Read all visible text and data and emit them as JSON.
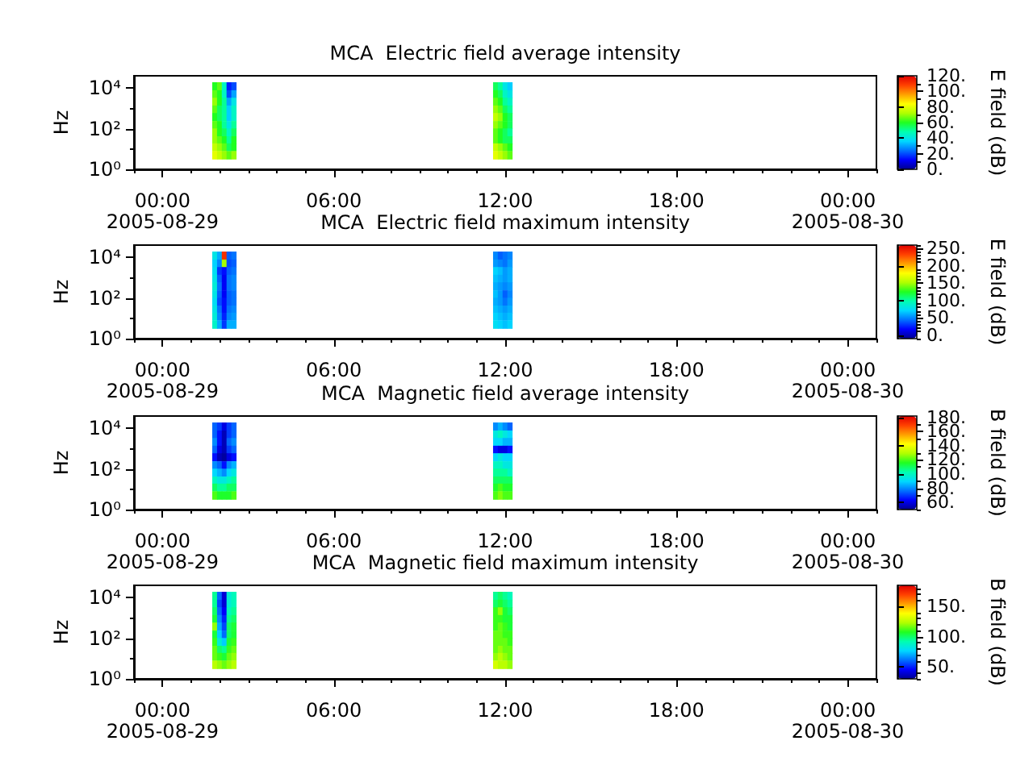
{
  "chart_data": [
    {
      "type": "scatter",
      "title": "MCA  Electric field average intensity",
      "ylabel": "Hz",
      "clabel": "E field (dB)",
      "marker": "square",
      "log": "y",
      "xlim": [
        "2005-08-28T23:00",
        "2005-08-30T01:00"
      ],
      "xticks": [
        {
          "value": "2005-08-28T23:00",
          "label": null
        },
        {
          "value": "2005-08-29T00:00",
          "label": "00:00\n2005-08-29"
        },
        {
          "value": "2005-08-29T01:00",
          "label": null
        },
        {
          "value": "2005-08-29T02:00",
          "label": null
        },
        {
          "value": "2005-08-29T03:00",
          "label": null
        },
        {
          "value": "2005-08-29T04:00",
          "label": null
        },
        {
          "value": "2005-08-29T05:00",
          "label": null
        },
        {
          "value": "2005-08-29T06:00",
          "label": "06:00"
        },
        {
          "value": "2005-08-29T07:00",
          "label": null
        },
        {
          "value": "2005-08-29T08:00",
          "label": null
        },
        {
          "value": "2005-08-29T09:00",
          "label": null
        },
        {
          "value": "2005-08-29T10:00",
          "label": null
        },
        {
          "value": "2005-08-29T11:00",
          "label": null
        },
        {
          "value": "2005-08-29T12:00",
          "label": "12:00"
        },
        {
          "value": "2005-08-29T13:00",
          "label": null
        },
        {
          "value": "2005-08-29T14:00",
          "label": null
        },
        {
          "value": "2005-08-29T15:00",
          "label": null
        },
        {
          "value": "2005-08-29T16:00",
          "label": null
        },
        {
          "value": "2005-08-29T17:00",
          "label": null
        },
        {
          "value": "2005-08-29T18:00",
          "label": "18:00"
        },
        {
          "value": "2005-08-29T19:00",
          "label": null
        },
        {
          "value": "2005-08-29T20:00",
          "label": null
        },
        {
          "value": "2005-08-29T21:00",
          "label": null
        },
        {
          "value": "2005-08-29T22:00",
          "label": null
        },
        {
          "value": "2005-08-29T23:00",
          "label": null
        },
        {
          "value": "2005-08-30T00:00",
          "label": "00:00\n2005-08-30"
        },
        {
          "value": "2005-08-30T01:00",
          "label": null
        }
      ],
      "ylim": [
        1,
        40000
      ],
      "yticks": [
        {
          "value": 1,
          "label": "10⁰"
        },
        {
          "value": 10,
          "label": null
        },
        {
          "value": 100,
          "label": "10²"
        },
        {
          "value": 1000,
          "label": null
        },
        {
          "value": 10000,
          "label": "10⁴"
        }
      ],
      "clim": [
        0,
        120
      ],
      "cticks": [
        {
          "value": 0,
          "label": "0."
        },
        {
          "value": 10,
          "label": null
        },
        {
          "value": 20,
          "label": "20."
        },
        {
          "value": 30,
          "label": null
        },
        {
          "value": 40,
          "label": "40."
        },
        {
          "value": 50,
          "label": null
        },
        {
          "value": 60,
          "label": "60."
        },
        {
          "value": 70,
          "label": null
        },
        {
          "value": 80,
          "label": "80."
        },
        {
          "value": 90,
          "label": null
        },
        {
          "value": 100,
          "label": "100."
        },
        {
          "value": 110,
          "label": null
        },
        {
          "value": 120,
          "label": "120."
        }
      ],
      "x": [
        "2005-08-29T01:50",
        "2005-08-29T02:00",
        "2005-08-29T02:10",
        "2005-08-29T02:20",
        "2005-08-29T02:30",
        "2005-08-29T01:50",
        "2005-08-29T02:00",
        "2005-08-29T02:10",
        "2005-08-29T02:20",
        "2005-08-29T02:30",
        "2005-08-29T01:50",
        "2005-08-29T02:00",
        "2005-08-29T02:10",
        "2005-08-29T02:20",
        "2005-08-29T02:30",
        "2005-08-29T01:50",
        "2005-08-29T02:00",
        "2005-08-29T02:10",
        "2005-08-29T02:20",
        "2005-08-29T02:30",
        "2005-08-29T01:50",
        "2005-08-29T02:00",
        "2005-08-29T02:10",
        "2005-08-29T02:20",
        "2005-08-29T02:30",
        "2005-08-29T01:50",
        "2005-08-29T02:00",
        "2005-08-29T02:10",
        "2005-08-29T02:20",
        "2005-08-29T02:30",
        "2005-08-29T01:50",
        "2005-08-29T02:00",
        "2005-08-29T02:10",
        "2005-08-29T02:20",
        "2005-08-29T02:30",
        "2005-08-29T01:50",
        "2005-08-29T02:00",
        "2005-08-29T02:10",
        "2005-08-29T02:20",
        "2005-08-29T02:30",
        "2005-08-29T01:50",
        "2005-08-29T02:00",
        "2005-08-29T02:10",
        "2005-08-29T02:20",
        "2005-08-29T02:30",
        "2005-08-29T01:50",
        "2005-08-29T02:00",
        "2005-08-29T02:10",
        "2005-08-29T02:20",
        "2005-08-29T02:30",
        "2005-08-29T11:40",
        "2005-08-29T11:50",
        "2005-08-29T12:00",
        "2005-08-29T12:10",
        "2005-08-29T11:40",
        "2005-08-29T11:50",
        "2005-08-29T12:00",
        "2005-08-29T12:10",
        "2005-08-29T11:40",
        "2005-08-29T11:50",
        "2005-08-29T12:00",
        "2005-08-29T12:10",
        "2005-08-29T11:40",
        "2005-08-29T11:50",
        "2005-08-29T12:00",
        "2005-08-29T12:10",
        "2005-08-29T11:40",
        "2005-08-29T11:50",
        "2005-08-29T12:00",
        "2005-08-29T12:10",
        "2005-08-29T11:40",
        "2005-08-29T11:50",
        "2005-08-29T12:00",
        "2005-08-29T12:10",
        "2005-08-29T11:40",
        "2005-08-29T11:50",
        "2005-08-29T12:00",
        "2005-08-29T12:10",
        "2005-08-29T11:40",
        "2005-08-29T11:50",
        "2005-08-29T12:00",
        "2005-08-29T12:10",
        "2005-08-29T11:40",
        "2005-08-29T11:50",
        "2005-08-29T12:00",
        "2005-08-29T12:10",
        "2005-08-29T11:40",
        "2005-08-29T11:50",
        "2005-08-29T12:00",
        "2005-08-29T12:10"
      ],
      "values": [
        12000,
        12000,
        12000,
        12000,
        12000,
        4900,
        4900,
        4900,
        4900,
        4900,
        2100,
        2100,
        2100,
        2100,
        2100,
        870,
        870,
        870,
        870,
        870,
        370,
        370,
        370,
        370,
        370,
        150,
        150,
        150,
        150,
        150,
        65,
        65,
        65,
        65,
        65,
        27,
        27,
        27,
        27,
        27,
        12,
        12,
        12,
        12,
        12,
        4.9,
        4.9,
        4.9,
        4.9,
        4.9,
        12000,
        12000,
        12000,
        12000,
        4900,
        4900,
        4900,
        4900,
        2100,
        2100,
        2100,
        2100,
        870,
        870,
        870,
        870,
        370,
        370,
        370,
        370,
        150,
        150,
        150,
        150,
        65,
        65,
        65,
        65,
        27,
        27,
        27,
        27,
        12,
        12,
        12,
        12,
        4.9,
        4.9,
        4.9,
        4.9
      ],
      "cvalues": [
        60,
        65,
        45,
        15,
        20,
        65,
        60,
        45,
        20,
        30,
        70,
        60,
        50,
        30,
        40,
        65,
        55,
        50,
        35,
        45,
        60,
        55,
        50,
        35,
        45,
        65,
        60,
        50,
        40,
        50,
        70,
        60,
        55,
        45,
        55,
        70,
        65,
        60,
        50,
        60,
        75,
        70,
        65,
        55,
        60,
        80,
        75,
        70,
        65,
        70,
        55,
        50,
        40,
        35,
        60,
        55,
        45,
        40,
        65,
        60,
        50,
        45,
        70,
        65,
        55,
        50,
        75,
        70,
        60,
        55,
        70,
        65,
        60,
        55,
        65,
        60,
        55,
        50,
        65,
        60,
        55,
        55,
        75,
        70,
        65,
        60,
        80,
        75,
        70,
        65
      ]
    },
    {
      "type": "scatter",
      "title": "MCA  Electric field maximum intensity",
      "ylabel": "Hz",
      "clabel": "E field (dB)",
      "marker": "square",
      "log": "y",
      "xlim": [
        "2005-08-28T23:00",
        "2005-08-30T01:00"
      ],
      "xticks": [
        {
          "value": "2005-08-28T23:00",
          "label": null
        },
        {
          "value": "2005-08-29T00:00",
          "label": "00:00\n2005-08-29"
        },
        {
          "value": "2005-08-29T01:00",
          "label": null
        },
        {
          "value": "2005-08-29T02:00",
          "label": null
        },
        {
          "value": "2005-08-29T03:00",
          "label": null
        },
        {
          "value": "2005-08-29T04:00",
          "label": null
        },
        {
          "value": "2005-08-29T05:00",
          "label": null
        },
        {
          "value": "2005-08-29T06:00",
          "label": "06:00"
        },
        {
          "value": "2005-08-29T07:00",
          "label": null
        },
        {
          "value": "2005-08-29T08:00",
          "label": null
        },
        {
          "value": "2005-08-29T09:00",
          "label": null
        },
        {
          "value": "2005-08-29T10:00",
          "label": null
        },
        {
          "value": "2005-08-29T11:00",
          "label": null
        },
        {
          "value": "2005-08-29T12:00",
          "label": "12:00"
        },
        {
          "value": "2005-08-29T13:00",
          "label": null
        },
        {
          "value": "2005-08-29T14:00",
          "label": null
        },
        {
          "value": "2005-08-29T15:00",
          "label": null
        },
        {
          "value": "2005-08-29T16:00",
          "label": null
        },
        {
          "value": "2005-08-29T17:00",
          "label": null
        },
        {
          "value": "2005-08-29T18:00",
          "label": "18:00"
        },
        {
          "value": "2005-08-29T19:00",
          "label": null
        },
        {
          "value": "2005-08-29T20:00",
          "label": null
        },
        {
          "value": "2005-08-29T21:00",
          "label": null
        },
        {
          "value": "2005-08-29T22:00",
          "label": null
        },
        {
          "value": "2005-08-29T23:00",
          "label": null
        },
        {
          "value": "2005-08-30T00:00",
          "label": "00:00\n2005-08-30"
        },
        {
          "value": "2005-08-30T01:00",
          "label": null
        }
      ],
      "ylim": [
        1,
        40000
      ],
      "yticks": [
        {
          "value": 1,
          "label": "10⁰"
        },
        {
          "value": 10,
          "label": null
        },
        {
          "value": 100,
          "label": "10²"
        },
        {
          "value": 1000,
          "label": null
        },
        {
          "value": 10000,
          "label": "10⁴"
        }
      ],
      "clim": [
        -10,
        260
      ],
      "cticks": [
        {
          "value": -10,
          "label": null
        },
        {
          "value": 0,
          "label": "0."
        },
        {
          "value": 10,
          "label": null
        },
        {
          "value": 20,
          "label": null
        },
        {
          "value": 30,
          "label": null
        },
        {
          "value": 40,
          "label": null
        },
        {
          "value": 50,
          "label": "50."
        },
        {
          "value": 60,
          "label": null
        },
        {
          "value": 70,
          "label": null
        },
        {
          "value": 80,
          "label": null
        },
        {
          "value": 90,
          "label": null
        },
        {
          "value": 100,
          "label": "100."
        },
        {
          "value": 110,
          "label": null
        },
        {
          "value": 120,
          "label": null
        },
        {
          "value": 130,
          "label": null
        },
        {
          "value": 140,
          "label": null
        },
        {
          "value": 150,
          "label": "150."
        },
        {
          "value": 160,
          "label": null
        },
        {
          "value": 170,
          "label": null
        },
        {
          "value": 180,
          "label": null
        },
        {
          "value": 190,
          "label": null
        },
        {
          "value": 200,
          "label": "200."
        },
        {
          "value": 210,
          "label": null
        },
        {
          "value": 220,
          "label": null
        },
        {
          "value": 230,
          "label": null
        },
        {
          "value": 240,
          "label": null
        },
        {
          "value": 250,
          "label": "250."
        },
        {
          "value": 260,
          "label": null
        }
      ],
      "x": [
        "2005-08-29T01:50",
        "2005-08-29T02:00",
        "2005-08-29T02:10",
        "2005-08-29T02:20",
        "2005-08-29T02:30",
        "2005-08-29T01:50",
        "2005-08-29T02:00",
        "2005-08-29T02:10",
        "2005-08-29T02:20",
        "2005-08-29T02:30",
        "2005-08-29T01:50",
        "2005-08-29T02:00",
        "2005-08-29T02:10",
        "2005-08-29T02:20",
        "2005-08-29T02:30",
        "2005-08-29T01:50",
        "2005-08-29T02:00",
        "2005-08-29T02:10",
        "2005-08-29T02:20",
        "2005-08-29T02:30",
        "2005-08-29T01:50",
        "2005-08-29T02:00",
        "2005-08-29T02:10",
        "2005-08-29T02:20",
        "2005-08-29T02:30",
        "2005-08-29T01:50",
        "2005-08-29T02:00",
        "2005-08-29T02:10",
        "2005-08-29T02:20",
        "2005-08-29T02:30",
        "2005-08-29T01:50",
        "2005-08-29T02:00",
        "2005-08-29T02:10",
        "2005-08-29T02:20",
        "2005-08-29T02:30",
        "2005-08-29T01:50",
        "2005-08-29T02:00",
        "2005-08-29T02:10",
        "2005-08-29T02:20",
        "2005-08-29T02:30",
        "2005-08-29T01:50",
        "2005-08-29T02:00",
        "2005-08-29T02:10",
        "2005-08-29T02:20",
        "2005-08-29T02:30",
        "2005-08-29T01:50",
        "2005-08-29T02:00",
        "2005-08-29T02:10",
        "2005-08-29T02:20",
        "2005-08-29T02:30",
        "2005-08-29T11:40",
        "2005-08-29T11:50",
        "2005-08-29T12:00",
        "2005-08-29T12:10",
        "2005-08-29T11:40",
        "2005-08-29T11:50",
        "2005-08-29T12:00",
        "2005-08-29T12:10",
        "2005-08-29T11:40",
        "2005-08-29T11:50",
        "2005-08-29T12:00",
        "2005-08-29T12:10",
        "2005-08-29T11:40",
        "2005-08-29T11:50",
        "2005-08-29T12:00",
        "2005-08-29T12:10",
        "2005-08-29T11:40",
        "2005-08-29T11:50",
        "2005-08-29T12:00",
        "2005-08-29T12:10",
        "2005-08-29T11:40",
        "2005-08-29T11:50",
        "2005-08-29T12:00",
        "2005-08-29T12:10",
        "2005-08-29T11:40",
        "2005-08-29T11:50",
        "2005-08-29T12:00",
        "2005-08-29T12:10",
        "2005-08-29T11:40",
        "2005-08-29T11:50",
        "2005-08-29T12:00",
        "2005-08-29T12:10",
        "2005-08-29T11:40",
        "2005-08-29T11:50",
        "2005-08-29T12:00",
        "2005-08-29T12:10",
        "2005-08-29T11:40",
        "2005-08-29T11:50",
        "2005-08-29T12:00",
        "2005-08-29T12:10"
      ],
      "values": [
        12000,
        12000,
        12000,
        12000,
        12000,
        4900,
        4900,
        4900,
        4900,
        4900,
        2100,
        2100,
        2100,
        2100,
        2100,
        870,
        870,
        870,
        870,
        870,
        370,
        370,
        370,
        370,
        370,
        150,
        150,
        150,
        150,
        150,
        65,
        65,
        65,
        65,
        65,
        27,
        27,
        27,
        27,
        27,
        12,
        12,
        12,
        12,
        12,
        4.9,
        4.9,
        4.9,
        4.9,
        4.9,
        12000,
        12000,
        12000,
        12000,
        4900,
        4900,
        4900,
        4900,
        2100,
        2100,
        2100,
        2100,
        870,
        870,
        870,
        870,
        370,
        370,
        370,
        370,
        150,
        150,
        150,
        150,
        65,
        65,
        65,
        65,
        27,
        27,
        27,
        27,
        12,
        12,
        12,
        12,
        4.9,
        4.9,
        4.9,
        4.9
      ],
      "cvalues": [
        80,
        60,
        240,
        40,
        45,
        70,
        50,
        150,
        35,
        40,
        75,
        30,
        20,
        40,
        45,
        80,
        40,
        15,
        45,
        50,
        85,
        45,
        15,
        45,
        50,
        80,
        40,
        15,
        40,
        45,
        75,
        35,
        20,
        40,
        45,
        80,
        45,
        20,
        45,
        50,
        85,
        50,
        25,
        50,
        55,
        90,
        60,
        30,
        60,
        60,
        50,
        40,
        45,
        50,
        55,
        50,
        45,
        55,
        70,
        65,
        55,
        60,
        65,
        60,
        55,
        60,
        60,
        55,
        50,
        55,
        65,
        55,
        40,
        50,
        60,
        55,
        45,
        55,
        65,
        60,
        55,
        60,
        70,
        65,
        60,
        65,
        75,
        70,
        65,
        70
      ]
    },
    {
      "type": "scatter",
      "title": "MCA  Magnetic field average intensity",
      "ylabel": "Hz",
      "clabel": "B field (dB)",
      "marker": "square",
      "log": "y",
      "xlim": [
        "2005-08-28T23:00",
        "2005-08-30T01:00"
      ],
      "xticks": [
        {
          "value": "2005-08-28T23:00",
          "label": null
        },
        {
          "value": "2005-08-29T00:00",
          "label": "00:00\n2005-08-29"
        },
        {
          "value": "2005-08-29T01:00",
          "label": null
        },
        {
          "value": "2005-08-29T02:00",
          "label": null
        },
        {
          "value": "2005-08-29T03:00",
          "label": null
        },
        {
          "value": "2005-08-29T04:00",
          "label": null
        },
        {
          "value": "2005-08-29T05:00",
          "label": null
        },
        {
          "value": "2005-08-29T06:00",
          "label": "06:00"
        },
        {
          "value": "2005-08-29T07:00",
          "label": null
        },
        {
          "value": "2005-08-29T08:00",
          "label": null
        },
        {
          "value": "2005-08-29T09:00",
          "label": null
        },
        {
          "value": "2005-08-29T10:00",
          "label": null
        },
        {
          "value": "2005-08-29T11:00",
          "label": null
        },
        {
          "value": "2005-08-29T12:00",
          "label": "12:00"
        },
        {
          "value": "2005-08-29T13:00",
          "label": null
        },
        {
          "value": "2005-08-29T14:00",
          "label": null
        },
        {
          "value": "2005-08-29T15:00",
          "label": null
        },
        {
          "value": "2005-08-29T16:00",
          "label": null
        },
        {
          "value": "2005-08-29T17:00",
          "label": null
        },
        {
          "value": "2005-08-29T18:00",
          "label": "18:00"
        },
        {
          "value": "2005-08-29T19:00",
          "label": null
        },
        {
          "value": "2005-08-29T20:00",
          "label": null
        },
        {
          "value": "2005-08-29T21:00",
          "label": null
        },
        {
          "value": "2005-08-29T22:00",
          "label": null
        },
        {
          "value": "2005-08-29T23:00",
          "label": null
        },
        {
          "value": "2005-08-30T00:00",
          "label": "00:00\n2005-08-30"
        },
        {
          "value": "2005-08-30T01:00",
          "label": null
        }
      ],
      "ylim": [
        1,
        40000
      ],
      "yticks": [
        {
          "value": 1,
          "label": "10⁰"
        },
        {
          "value": 10,
          "label": null
        },
        {
          "value": 100,
          "label": "10²"
        },
        {
          "value": 1000,
          "label": null
        },
        {
          "value": 10000,
          "label": "10⁴"
        }
      ],
      "clim": [
        50,
        182
      ],
      "cticks": [
        {
          "value": 50,
          "label": null
        },
        {
          "value": 60,
          "label": "60."
        },
        {
          "value": 70,
          "label": null
        },
        {
          "value": 80,
          "label": "80."
        },
        {
          "value": 90,
          "label": null
        },
        {
          "value": 100,
          "label": "100."
        },
        {
          "value": 110,
          "label": null
        },
        {
          "value": 120,
          "label": "120."
        },
        {
          "value": 130,
          "label": null
        },
        {
          "value": 140,
          "label": "140."
        },
        {
          "value": 150,
          "label": null
        },
        {
          "value": 160,
          "label": "160."
        },
        {
          "value": 170,
          "label": null
        },
        {
          "value": 180,
          "label": "180."
        }
      ],
      "x": [
        "2005-08-29T01:50",
        "2005-08-29T02:00",
        "2005-08-29T02:10",
        "2005-08-29T02:20",
        "2005-08-29T02:30",
        "2005-08-29T01:50",
        "2005-08-29T02:00",
        "2005-08-29T02:10",
        "2005-08-29T02:20",
        "2005-08-29T02:30",
        "2005-08-29T01:50",
        "2005-08-29T02:00",
        "2005-08-29T02:10",
        "2005-08-29T02:20",
        "2005-08-29T02:30",
        "2005-08-29T01:50",
        "2005-08-29T02:00",
        "2005-08-29T02:10",
        "2005-08-29T02:20",
        "2005-08-29T02:30",
        "2005-08-29T01:50",
        "2005-08-29T02:00",
        "2005-08-29T02:10",
        "2005-08-29T02:20",
        "2005-08-29T02:30",
        "2005-08-29T01:50",
        "2005-08-29T02:00",
        "2005-08-29T02:10",
        "2005-08-29T02:20",
        "2005-08-29T02:30",
        "2005-08-29T01:50",
        "2005-08-29T02:00",
        "2005-08-29T02:10",
        "2005-08-29T02:20",
        "2005-08-29T02:30",
        "2005-08-29T01:50",
        "2005-08-29T02:00",
        "2005-08-29T02:10",
        "2005-08-29T02:20",
        "2005-08-29T02:30",
        "2005-08-29T01:50",
        "2005-08-29T02:00",
        "2005-08-29T02:10",
        "2005-08-29T02:20",
        "2005-08-29T02:30",
        "2005-08-29T01:50",
        "2005-08-29T02:00",
        "2005-08-29T02:10",
        "2005-08-29T02:20",
        "2005-08-29T02:30",
        "2005-08-29T11:40",
        "2005-08-29T11:50",
        "2005-08-29T12:00",
        "2005-08-29T12:10",
        "2005-08-29T11:40",
        "2005-08-29T11:50",
        "2005-08-29T12:00",
        "2005-08-29T12:10",
        "2005-08-29T11:40",
        "2005-08-29T11:50",
        "2005-08-29T12:00",
        "2005-08-29T12:10",
        "2005-08-29T11:40",
        "2005-08-29T11:50",
        "2005-08-29T12:00",
        "2005-08-29T12:10",
        "2005-08-29T11:40",
        "2005-08-29T11:50",
        "2005-08-29T12:00",
        "2005-08-29T12:10",
        "2005-08-29T11:40",
        "2005-08-29T11:50",
        "2005-08-29T12:00",
        "2005-08-29T12:10",
        "2005-08-29T11:40",
        "2005-08-29T11:50",
        "2005-08-29T12:00",
        "2005-08-29T12:10",
        "2005-08-29T11:40",
        "2005-08-29T11:50",
        "2005-08-29T12:00",
        "2005-08-29T12:10",
        "2005-08-29T11:40",
        "2005-08-29T11:50",
        "2005-08-29T12:00",
        "2005-08-29T12:10",
        "2005-08-29T11:40",
        "2005-08-29T11:50",
        "2005-08-29T12:00",
        "2005-08-29T12:10"
      ],
      "values": [
        12000,
        12000,
        12000,
        12000,
        12000,
        4900,
        4900,
        4900,
        4900,
        4900,
        2100,
        2100,
        2100,
        2100,
        2100,
        870,
        870,
        870,
        870,
        870,
        370,
        370,
        370,
        370,
        370,
        150,
        150,
        150,
        150,
        150,
        65,
        65,
        65,
        65,
        65,
        27,
        27,
        27,
        27,
        27,
        12,
        12,
        12,
        12,
        12,
        4.9,
        4.9,
        4.9,
        4.9,
        4.9,
        12000,
        12000,
        12000,
        12000,
        4900,
        4900,
        4900,
        4900,
        2100,
        2100,
        2100,
        2100,
        870,
        870,
        870,
        870,
        370,
        370,
        370,
        370,
        150,
        150,
        150,
        150,
        65,
        65,
        65,
        65,
        27,
        27,
        27,
        27,
        12,
        12,
        12,
        12,
        4.9,
        4.9,
        4.9,
        4.9
      ],
      "cvalues": [
        75,
        70,
        60,
        70,
        75,
        75,
        65,
        55,
        70,
        75,
        80,
        65,
        55,
        75,
        80,
        75,
        60,
        55,
        70,
        75,
        65,
        55,
        52,
        60,
        65,
        80,
        75,
        65,
        80,
        85,
        90,
        85,
        80,
        90,
        95,
        100,
        95,
        95,
        100,
        105,
        110,
        105,
        105,
        110,
        110,
        120,
        115,
        115,
        115,
        120,
        80,
        85,
        80,
        75,
        95,
        100,
        95,
        90,
        90,
        90,
        85,
        85,
        65,
        60,
        60,
        65,
        90,
        95,
        90,
        90,
        100,
        100,
        95,
        95,
        105,
        105,
        105,
        100,
        110,
        110,
        110,
        110,
        115,
        120,
        115,
        115,
        120,
        125,
        120,
        120
      ]
    },
    {
      "type": "scatter",
      "title": "MCA  Magnetic field maximum intensity",
      "ylabel": "Hz",
      "clabel": "B field (dB)",
      "marker": "square",
      "log": "y",
      "xlim": [
        "2005-08-28T23:00",
        "2005-08-30T01:00"
      ],
      "xticks": [
        {
          "value": "2005-08-28T23:00",
          "label": null
        },
        {
          "value": "2005-08-29T00:00",
          "label": "00:00\n2005-08-29"
        },
        {
          "value": "2005-08-29T01:00",
          "label": null
        },
        {
          "value": "2005-08-29T02:00",
          "label": null
        },
        {
          "value": "2005-08-29T03:00",
          "label": null
        },
        {
          "value": "2005-08-29T04:00",
          "label": null
        },
        {
          "value": "2005-08-29T05:00",
          "label": null
        },
        {
          "value": "2005-08-29T06:00",
          "label": "06:00"
        },
        {
          "value": "2005-08-29T07:00",
          "label": null
        },
        {
          "value": "2005-08-29T08:00",
          "label": null
        },
        {
          "value": "2005-08-29T09:00",
          "label": null
        },
        {
          "value": "2005-08-29T10:00",
          "label": null
        },
        {
          "value": "2005-08-29T11:00",
          "label": null
        },
        {
          "value": "2005-08-29T12:00",
          "label": "12:00"
        },
        {
          "value": "2005-08-29T13:00",
          "label": null
        },
        {
          "value": "2005-08-29T14:00",
          "label": null
        },
        {
          "value": "2005-08-29T15:00",
          "label": null
        },
        {
          "value": "2005-08-29T16:00",
          "label": null
        },
        {
          "value": "2005-08-29T17:00",
          "label": null
        },
        {
          "value": "2005-08-29T18:00",
          "label": "18:00"
        },
        {
          "value": "2005-08-29T19:00",
          "label": null
        },
        {
          "value": "2005-08-29T20:00",
          "label": null
        },
        {
          "value": "2005-08-29T21:00",
          "label": null
        },
        {
          "value": "2005-08-29T22:00",
          "label": null
        },
        {
          "value": "2005-08-29T23:00",
          "label": null
        },
        {
          "value": "2005-08-30T00:00",
          "label": "00:00\n2005-08-30"
        },
        {
          "value": "2005-08-30T01:00",
          "label": null
        }
      ],
      "ylim": [
        1,
        40000
      ],
      "yticks": [
        {
          "value": 1,
          "label": "10⁰"
        },
        {
          "value": 10,
          "label": null
        },
        {
          "value": 100,
          "label": "10²"
        },
        {
          "value": 1000,
          "label": null
        },
        {
          "value": 10000,
          "label": "10⁴"
        }
      ],
      "clim": [
        30,
        185
      ],
      "cticks": [
        {
          "value": 30,
          "label": null
        },
        {
          "value": 40,
          "label": null
        },
        {
          "value": 50,
          "label": "50."
        },
        {
          "value": 60,
          "label": null
        },
        {
          "value": 70,
          "label": null
        },
        {
          "value": 80,
          "label": null
        },
        {
          "value": 90,
          "label": null
        },
        {
          "value": 100,
          "label": "100."
        },
        {
          "value": 110,
          "label": null
        },
        {
          "value": 120,
          "label": null
        },
        {
          "value": 130,
          "label": null
        },
        {
          "value": 140,
          "label": null
        },
        {
          "value": 150,
          "label": "150."
        },
        {
          "value": 160,
          "label": null
        },
        {
          "value": 170,
          "label": null
        },
        {
          "value": 180,
          "label": null
        }
      ],
      "x": [
        "2005-08-29T01:50",
        "2005-08-29T02:00",
        "2005-08-29T02:10",
        "2005-08-29T02:20",
        "2005-08-29T02:30",
        "2005-08-29T01:50",
        "2005-08-29T02:00",
        "2005-08-29T02:10",
        "2005-08-29T02:20",
        "2005-08-29T02:30",
        "2005-08-29T01:50",
        "2005-08-29T02:00",
        "2005-08-29T02:10",
        "2005-08-29T02:20",
        "2005-08-29T02:30",
        "2005-08-29T01:50",
        "2005-08-29T02:00",
        "2005-08-29T02:10",
        "2005-08-29T02:20",
        "2005-08-29T02:30",
        "2005-08-29T01:50",
        "2005-08-29T02:00",
        "2005-08-29T02:10",
        "2005-08-29T02:20",
        "2005-08-29T02:30",
        "2005-08-29T01:50",
        "2005-08-29T02:00",
        "2005-08-29T02:10",
        "2005-08-29T02:20",
        "2005-08-29T02:30",
        "2005-08-29T01:50",
        "2005-08-29T02:00",
        "2005-08-29T02:10",
        "2005-08-29T02:20",
        "2005-08-29T02:30",
        "2005-08-29T01:50",
        "2005-08-29T02:00",
        "2005-08-29T02:10",
        "2005-08-29T02:20",
        "2005-08-29T02:30",
        "2005-08-29T01:50",
        "2005-08-29T02:00",
        "2005-08-29T02:10",
        "2005-08-29T02:20",
        "2005-08-29T02:30",
        "2005-08-29T01:50",
        "2005-08-29T02:00",
        "2005-08-29T02:10",
        "2005-08-29T02:20",
        "2005-08-29T02:30",
        "2005-08-29T11:40",
        "2005-08-29T11:50",
        "2005-08-29T12:00",
        "2005-08-29T12:10",
        "2005-08-29T11:40",
        "2005-08-29T11:50",
        "2005-08-29T12:00",
        "2005-08-29T12:10",
        "2005-08-29T11:40",
        "2005-08-29T11:50",
        "2005-08-29T12:00",
        "2005-08-29T12:10",
        "2005-08-29T11:40",
        "2005-08-29T11:50",
        "2005-08-29T12:00",
        "2005-08-29T12:10",
        "2005-08-29T11:40",
        "2005-08-29T11:50",
        "2005-08-29T12:00",
        "2005-08-29T12:10",
        "2005-08-29T11:40",
        "2005-08-29T11:50",
        "2005-08-29T12:00",
        "2005-08-29T12:10",
        "2005-08-29T11:40",
        "2005-08-29T11:50",
        "2005-08-29T12:00",
        "2005-08-29T12:10",
        "2005-08-29T11:40",
        "2005-08-29T11:50",
        "2005-08-29T12:00",
        "2005-08-29T12:10",
        "2005-08-29T11:40",
        "2005-08-29T11:50",
        "2005-08-29T12:00",
        "2005-08-29T12:10",
        "2005-08-29T11:40",
        "2005-08-29T11:50",
        "2005-08-29T12:00",
        "2005-08-29T12:10"
      ],
      "values": [
        12000,
        12000,
        12000,
        12000,
        12000,
        4900,
        4900,
        4900,
        4900,
        4900,
        2100,
        2100,
        2100,
        2100,
        2100,
        870,
        870,
        870,
        870,
        870,
        370,
        370,
        370,
        370,
        370,
        150,
        150,
        150,
        150,
        150,
        65,
        65,
        65,
        65,
        65,
        27,
        27,
        27,
        27,
        27,
        12,
        12,
        12,
        12,
        12,
        4.9,
        4.9,
        4.9,
        4.9,
        4.9,
        12000,
        12000,
        12000,
        12000,
        4900,
        4900,
        4900,
        4900,
        2100,
        2100,
        2100,
        2100,
        870,
        870,
        870,
        870,
        370,
        370,
        370,
        370,
        150,
        150,
        150,
        150,
        65,
        65,
        65,
        65,
        27,
        27,
        27,
        27,
        12,
        12,
        12,
        12,
        4.9,
        4.9,
        4.9,
        4.9
      ],
      "cvalues": [
        95,
        60,
        40,
        85,
        90,
        95,
        55,
        40,
        85,
        90,
        100,
        60,
        45,
        90,
        95,
        105,
        65,
        50,
        95,
        100,
        120,
        70,
        55,
        100,
        105,
        105,
        75,
        60,
        100,
        105,
        110,
        85,
        75,
        105,
        110,
        115,
        100,
        95,
        110,
        115,
        115,
        110,
        105,
        115,
        120,
        125,
        120,
        115,
        120,
        125,
        95,
        100,
        95,
        90,
        100,
        105,
        100,
        95,
        110,
        120,
        105,
        100,
        110,
        110,
        105,
        105,
        110,
        115,
        110,
        105,
        115,
        115,
        110,
        110,
        115,
        115,
        115,
        110,
        115,
        120,
        115,
        115,
        120,
        125,
        120,
        115,
        130,
        125,
        125,
        120
      ]
    }
  ]
}
